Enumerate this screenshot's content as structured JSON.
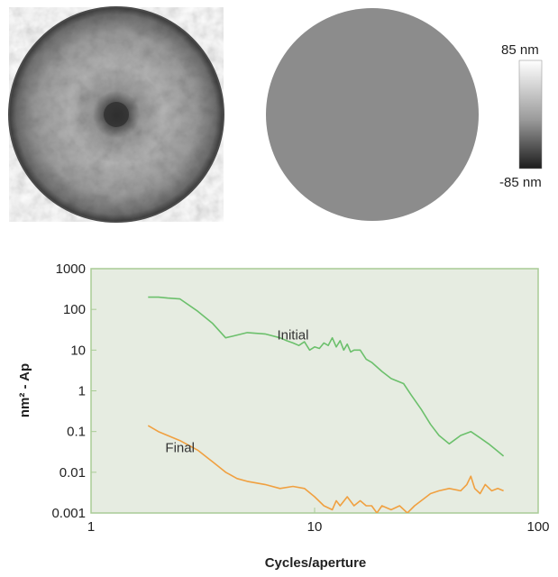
{
  "colors": {
    "initial": "#6cc06c",
    "final": "#f0a040",
    "plot_background": "#e6ece1",
    "plot_border": "#a9cc96",
    "uniform_map": "#8c8c8c"
  },
  "maps": {
    "colorbar_max": "85 nm",
    "colorbar_min": "-85 nm"
  },
  "chart_data": {
    "type": "line",
    "xlabel": "Cycles/aperture",
    "ylabel": "nm² - Ap",
    "x_scale": "log",
    "y_scale": "log",
    "xlim": [
      1,
      100
    ],
    "ylim": [
      0.001,
      1000
    ],
    "x_ticks": [
      1,
      10,
      100
    ],
    "x_tick_labels": [
      "1",
      "10",
      "100"
    ],
    "y_ticks": [
      0.001,
      0.01,
      0.1,
      1,
      10,
      100,
      1000
    ],
    "y_tick_labels": [
      "0.001",
      "0.01",
      "0.1",
      "1",
      "10",
      "100",
      "1000"
    ],
    "grid": false,
    "series": [
      {
        "name": "Initial",
        "color": "#6cc06c",
        "x": [
          1.8,
          2.0,
          2.2,
          2.5,
          3.0,
          3.5,
          4.0,
          4.3,
          5.0,
          6.0,
          7.0,
          7.5,
          8.0,
          8.5,
          9.0,
          9.5,
          10.0,
          10.5,
          11.0,
          11.5,
          12.0,
          12.5,
          13.0,
          13.5,
          14.0,
          14.5,
          15.0,
          16.0,
          17.0,
          18.0,
          20.0,
          22.0,
          25.0,
          27.0,
          30.0,
          33.0,
          36.0,
          40.0,
          45.0,
          50.0,
          55.0,
          60.0,
          65.0,
          70.0
        ],
        "y": [
          200,
          200,
          190,
          180,
          90,
          45,
          20,
          22,
          27,
          25,
          20,
          17,
          15,
          13,
          16,
          10,
          12,
          11,
          15,
          13,
          20,
          12,
          17,
          10,
          14,
          9,
          10,
          10,
          6,
          5,
          3,
          2,
          1.5,
          0.8,
          0.35,
          0.15,
          0.08,
          0.05,
          0.08,
          0.1,
          0.07,
          0.05,
          0.035,
          0.025
        ]
      },
      {
        "name": "Final",
        "color": "#f0a040",
        "x": [
          1.8,
          2.0,
          2.5,
          3.0,
          3.5,
          4.0,
          4.5,
          5.0,
          6.0,
          7.0,
          8.0,
          9.0,
          10.0,
          11.0,
          12.0,
          12.5,
          13.0,
          14.0,
          15.0,
          16.0,
          17.0,
          18.0,
          19.0,
          20.0,
          22.0,
          24.0,
          26.0,
          28.0,
          30.0,
          33.0,
          36.0,
          40.0,
          45.0,
          48.0,
          50.0,
          52.0,
          55.0,
          58.0,
          62.0,
          66.0,
          70.0
        ],
        "y": [
          0.14,
          0.1,
          0.06,
          0.035,
          0.018,
          0.01,
          0.007,
          0.006,
          0.005,
          0.004,
          0.0045,
          0.004,
          0.0025,
          0.0015,
          0.0012,
          0.002,
          0.0015,
          0.0025,
          0.0015,
          0.002,
          0.0015,
          0.0015,
          0.001,
          0.0015,
          0.0012,
          0.0015,
          0.001,
          0.0015,
          0.002,
          0.003,
          0.0035,
          0.004,
          0.0035,
          0.005,
          0.008,
          0.004,
          0.003,
          0.005,
          0.0035,
          0.004,
          0.0035
        ]
      }
    ]
  }
}
